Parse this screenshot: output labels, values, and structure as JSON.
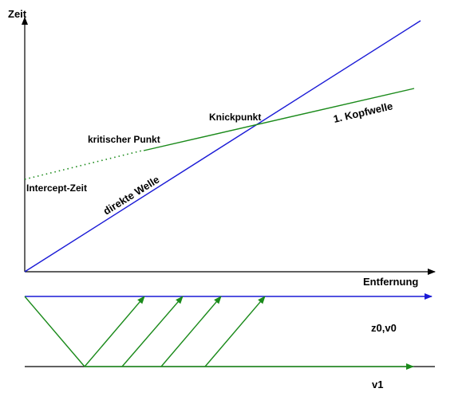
{
  "colors": {
    "axis": "#000000",
    "direct_wave": "#1a1ad6",
    "head_wave": "#1a8a1a",
    "layer_boundary": "#000000"
  },
  "labels": {
    "y_axis": "Zeit",
    "x_axis": "Entfernung",
    "intercept": "Intercept-Zeit",
    "critical_point": "kritischer Punkt",
    "knee_point": "Knickpunkt",
    "head_wave": "1. Kopfwelle",
    "direct_wave": "direkte Welle",
    "layer_top": "z0,v0",
    "layer_bottom": "v1"
  }
}
